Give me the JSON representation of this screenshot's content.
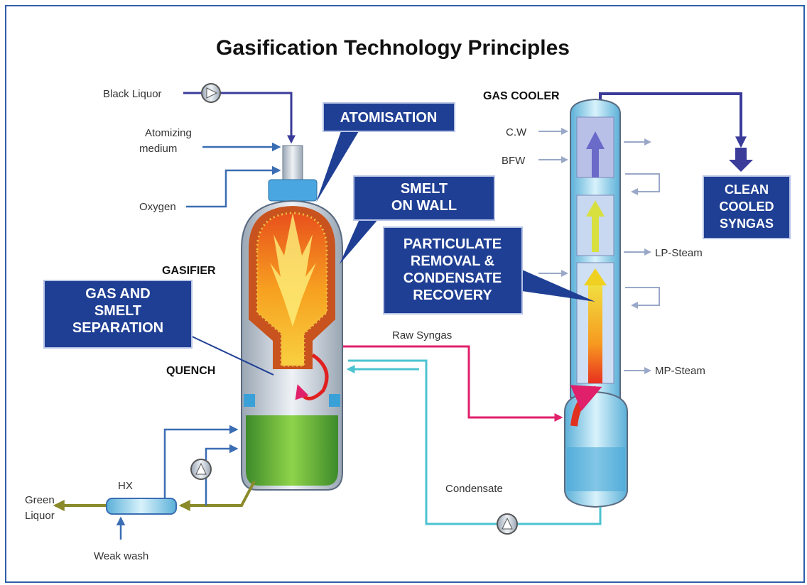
{
  "title": "Gasification Technology Principles",
  "streams": {
    "black_liquor": "Black Liquor",
    "atomizing_medium": [
      "Atomizing",
      "medium"
    ],
    "oxygen": "Oxygen",
    "raw_syngas": "Raw Syngas",
    "condensate": "Condensate",
    "green_liquor": [
      "Green",
      "Liquor"
    ],
    "weak_wash": "Weak wash",
    "cw": "C.W",
    "bfw": "BFW",
    "lp_steam": "LP-Steam",
    "mp_steam": "MP-Steam"
  },
  "units": {
    "gasifier": "GASIFIER",
    "quench": "QUENCH",
    "gas_cooler": "GAS COOLER",
    "hx": "HX"
  },
  "callouts": {
    "atomisation": "ATOMISATION",
    "smelt_on_wall": [
      "SMELT",
      "ON WALL"
    ],
    "particulate": [
      "PARTICULATE",
      "REMOVAL &",
      "CONDENSATE",
      "RECOVERY"
    ],
    "gas_smelt": [
      "GAS AND",
      "SMELT",
      "SEPARATION"
    ],
    "clean_syngas": [
      "CLEAN",
      "COOLED",
      "SYNGAS"
    ]
  }
}
